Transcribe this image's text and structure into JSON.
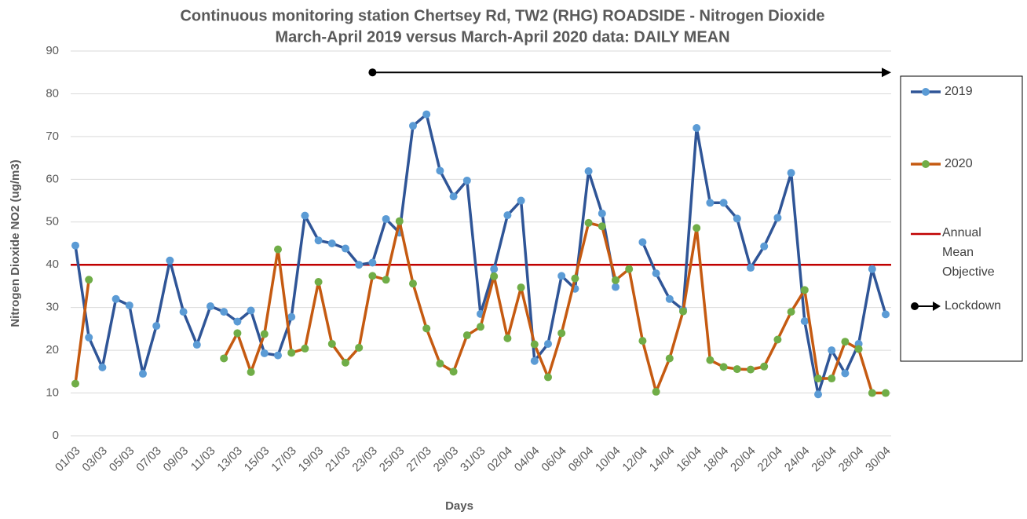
{
  "chart_data": {
    "type": "line",
    "title": "Continuous monitoring station Chertsey Rd, TW2 (RHG) ROADSIDE - Nitrogen Dioxide",
    "subtitle": "March-April 2019 versus March-April 2020 data: DAILY MEAN",
    "x_label": "Days",
    "y_label": "Nitrogen Dioxide NO2  (ug/m3)",
    "categories": [
      "01/03",
      null,
      "03/03",
      null,
      "05/03",
      null,
      "07/03",
      null,
      "09/03",
      null,
      "11/03",
      null,
      "13/03",
      null,
      "15/03",
      null,
      "17/03",
      null,
      "19/03",
      null,
      "21/03",
      null,
      "23/03",
      null,
      "25/03",
      null,
      "27/03",
      null,
      "29/03",
      null,
      "31/03",
      null,
      "02/04",
      null,
      "04/04",
      null,
      "06/04",
      null,
      "08/04",
      null,
      "10/04",
      null,
      "12/04",
      null,
      "14/04",
      null,
      "16/04",
      null,
      "18/04",
      null,
      "20/04",
      null,
      "22/04",
      null,
      "24/04",
      null,
      "26/04",
      null,
      "28/04",
      null,
      "30/04"
    ],
    "series": [
      {
        "name": "2019",
        "color": "#2f5597",
        "marker_color": "#5b9bd5",
        "values": [
          44.5,
          23,
          16,
          32,
          30.5,
          14.5,
          25.7,
          41,
          29,
          21.3,
          30.3,
          29,
          26.7,
          29.3,
          19.3,
          18.8,
          27.8,
          51.5,
          45.7,
          45,
          43.8,
          40,
          40.5,
          50.7,
          47.5,
          72.5,
          75.2,
          62,
          56,
          59.7,
          28.5,
          39,
          51.6,
          55,
          17.5,
          21.5,
          37.4,
          34.4,
          61.9,
          52,
          34.8,
          null,
          45.3,
          38,
          32,
          29.5,
          72,
          54.5,
          54.5,
          50.8,
          39.3,
          44.3,
          51,
          61.5,
          26.8,
          9.7,
          20,
          14.6,
          21.5,
          39,
          28.4
        ]
      },
      {
        "name": "2020",
        "color": "#c55a11",
        "marker_color": "#70ad47",
        "values": [
          12.2,
          36.5,
          null,
          null,
          null,
          null,
          null,
          null,
          null,
          null,
          null,
          18.1,
          24,
          14.9,
          23.8,
          43.6,
          19.4,
          20.4,
          36,
          21.5,
          17.1,
          20.6,
          37.4,
          36.5,
          50.2,
          35.6,
          25.1,
          16.9,
          15,
          23.5,
          25.5,
          37.3,
          22.8,
          34.7,
          21.4,
          13.7,
          24,
          36.8,
          49.8,
          49,
          36.4,
          39,
          22.2,
          10.3,
          18.1,
          29.1,
          48.6,
          17.7,
          16.1,
          15.6,
          15.5,
          16.2,
          22.5,
          29,
          34.1,
          13.4,
          13.4,
          22,
          20.3,
          10,
          10
        ]
      }
    ],
    "annual_mean_objective": {
      "name": "Annual Mean Objective",
      "value": 40,
      "color": "#c00000"
    },
    "lockdown": {
      "name": "Lockdown",
      "start": "23/03",
      "y": 85,
      "color": "#000000"
    },
    "ylim": [
      0,
      90
    ],
    "yticks": [
      0,
      10,
      20,
      30,
      40,
      50,
      60,
      70,
      80,
      90
    ],
    "grid": true
  }
}
